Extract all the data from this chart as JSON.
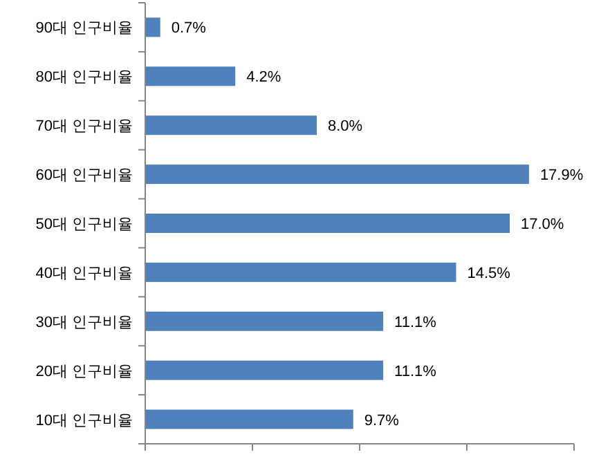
{
  "chart_data": {
    "type": "bar",
    "orientation": "horizontal",
    "categories": [
      "90대 인구비율",
      "80대 인구비율",
      "70대 인구비율",
      "60대 인구비율",
      "50대 인구비율",
      "40대 인구비율",
      "30대 인구비율",
      "20대 인구비율",
      "10대 인구비율"
    ],
    "values": [
      0.7,
      4.2,
      8.0,
      17.9,
      17.0,
      14.5,
      11.1,
      11.1,
      9.7
    ],
    "value_labels": [
      "0.7%",
      "4.2%",
      "8.0%",
      "17.9%",
      "17.0%",
      "14.5%",
      "11.1%",
      "11.1%",
      "9.7%"
    ],
    "color": "#4f81bd",
    "xlim": [
      0,
      20
    ],
    "xticks": [
      {
        "value": 0,
        "label": null
      },
      {
        "value": 5,
        "label": null
      },
      {
        "value": 10,
        "label": null
      },
      {
        "value": 15,
        "label": null
      },
      {
        "value": 20,
        "label": null
      }
    ],
    "tick_labels": "y"
  }
}
